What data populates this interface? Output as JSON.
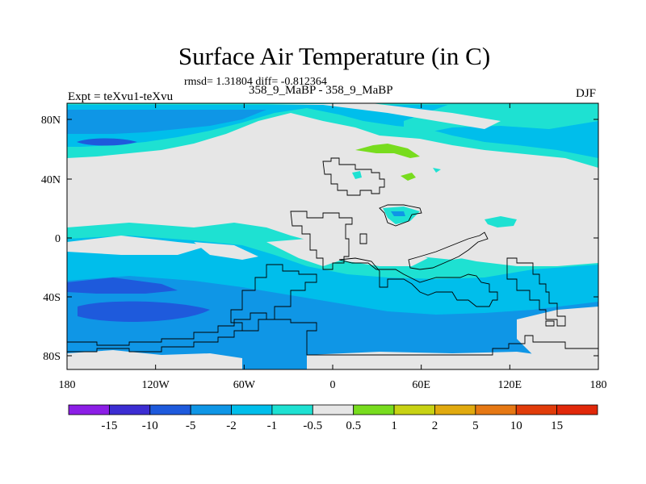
{
  "title": "Surface Air Temperature (in C)",
  "stats": "rmsd= 1.31804 diff= -0.812364",
  "left_label": "Expt = teXvu1-teXvu",
  "center_label": "358_9_MaBP - 358_9_MaBP",
  "right_label": "DJF",
  "lat_ticks": [
    "80N",
    "40N",
    "0",
    "40S",
    "80S"
  ],
  "lon_ticks": [
    "180",
    "120W",
    "60W",
    "0",
    "60E",
    "120E",
    "180"
  ],
  "legend": {
    "labels": [
      "-15",
      "-10",
      "-5",
      "-2",
      "-1",
      "-0.5",
      "0.5",
      "1",
      "2",
      "5",
      "10",
      "15"
    ],
    "colors": [
      "#8c1ee6",
      "#3c2dd2",
      "#1e5adc",
      "#0f96e6",
      "#00beeb",
      "#1ee1d2",
      "#e6e6e6",
      "#78dc1e",
      "#c8d214",
      "#e1aa0f",
      "#e67814",
      "#e13c0a",
      "#e1280a"
    ]
  },
  "map_colors": {
    "neutral": "#e6e6e6",
    "c_m05": "#1ee1d2",
    "c_m1": "#00beeb",
    "c_m2": "#0f96e6",
    "c_m5": "#1e5adc",
    "c_m10": "#3c2dd2",
    "c_p05": "#78dc1e"
  }
}
